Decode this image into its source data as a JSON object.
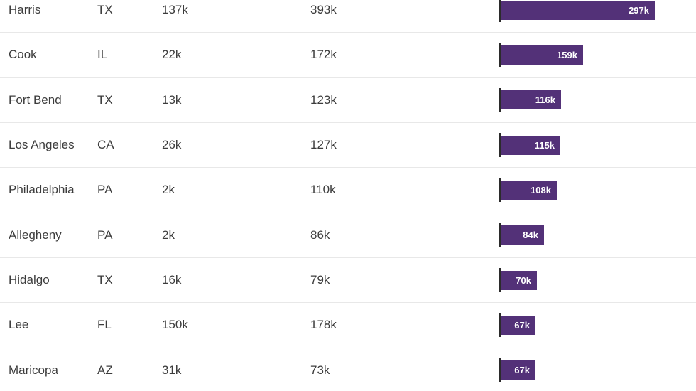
{
  "chart_data": {
    "type": "table",
    "title": "",
    "description": "Table of counties with state, two numeric columns and an embedded horizontal bar chart column",
    "columns": [
      "county",
      "state",
      "value_1",
      "value_2",
      "bar"
    ],
    "rows": [
      {
        "county": "Harris",
        "state": "TX",
        "value_1": "137k",
        "value_2": "393k",
        "bar_label": "297k",
        "bar_value": 297
      },
      {
        "county": "Cook",
        "state": "IL",
        "value_1": "22k",
        "value_2": "172k",
        "bar_label": "159k",
        "bar_value": 159
      },
      {
        "county": "Fort Bend",
        "state": "TX",
        "value_1": "13k",
        "value_2": "123k",
        "bar_label": "116k",
        "bar_value": 116
      },
      {
        "county": "Los Angeles",
        "state": "CA",
        "value_1": "26k",
        "value_2": "127k",
        "bar_label": "115k",
        "bar_value": 115
      },
      {
        "county": "Philadelphia",
        "state": "PA",
        "value_1": "2k",
        "value_2": "110k",
        "bar_label": "108k",
        "bar_value": 108
      },
      {
        "county": "Allegheny",
        "state": "PA",
        "value_1": "2k",
        "value_2": "86k",
        "bar_label": "84k",
        "bar_value": 84
      },
      {
        "county": "Hidalgo",
        "state": "TX",
        "value_1": "16k",
        "value_2": "79k",
        "bar_label": "70k",
        "bar_value": 70
      },
      {
        "county": "Lee",
        "state": "FL",
        "value_1": "150k",
        "value_2": "178k",
        "bar_label": "67k",
        "bar_value": 67
      },
      {
        "county": "Maricopa",
        "state": "AZ",
        "value_1": "31k",
        "value_2": "73k",
        "bar_label": "67k",
        "bar_value": 67
      }
    ],
    "bar_axis_min": 0,
    "bar_max_value": 297,
    "legend": "none",
    "grid": "row-separators-only",
    "colors": {
      "bar_fill": "#533178",
      "bar_label": "#ffffff",
      "tick": "#2b2b2b",
      "text": "#3c3c3c",
      "separator": "#e8e8e8",
      "background": "#ffffff"
    }
  }
}
